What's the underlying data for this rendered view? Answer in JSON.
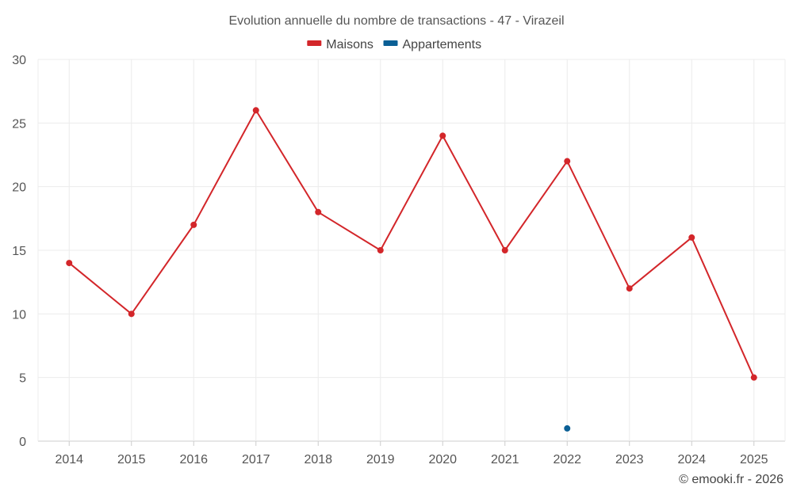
{
  "chart_data": {
    "type": "line",
    "title": "Evolution annuelle du nombre de transactions - 47 - Virazeil",
    "categories": [
      "2014",
      "2015",
      "2016",
      "2017",
      "2018",
      "2019",
      "2020",
      "2021",
      "2022",
      "2023",
      "2024",
      "2025"
    ],
    "series": [
      {
        "name": "Maisons",
        "color": "#d3262a",
        "values": [
          14,
          10,
          17,
          26,
          18,
          15,
          24,
          15,
          22,
          12,
          16,
          5
        ]
      },
      {
        "name": "Appartements",
        "color": "#0b5f95",
        "values": [
          null,
          null,
          null,
          null,
          null,
          null,
          null,
          null,
          1,
          null,
          null,
          null
        ]
      }
    ],
    "ylim": [
      0,
      30
    ],
    "yticks": [
      0,
      5,
      10,
      15,
      20,
      25,
      30
    ],
    "xlabel": "",
    "ylabel": "",
    "legend_position": "top-center",
    "grid": true
  },
  "credit": "© emooki.fr - 2026"
}
